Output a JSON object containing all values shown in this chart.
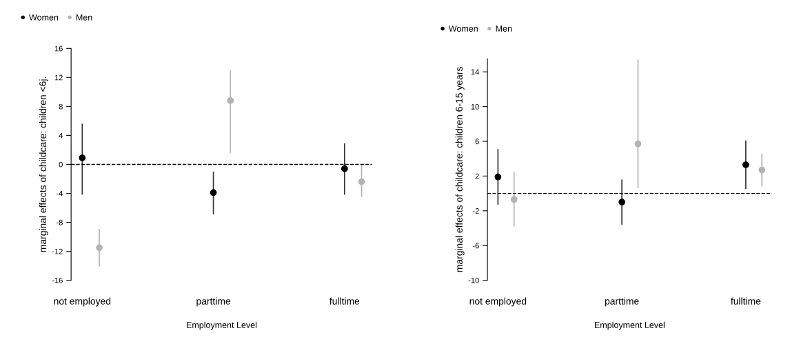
{
  "chart_data": [
    {
      "type": "scatter",
      "categories": [
        "not employed",
        "parttime",
        "fulltime"
      ],
      "xlabel": "Employment Level",
      "ylabel": "marginal effects of childcare: children <6j.",
      "ylim": [
        -16,
        16
      ],
      "yticks": [
        -16,
        -12,
        -8,
        -4,
        0,
        4,
        8,
        12,
        16
      ],
      "legend": "top left",
      "marker": "circle",
      "grid": false,
      "series": [
        {
          "name": "Women",
          "color": "#000000",
          "values": [
            0.9,
            -3.9,
            -0.6
          ],
          "errors": [
            [
              -4.2,
              5.6
            ],
            [
              -6.9,
              -1.0
            ],
            [
              -4.2,
              2.9
            ]
          ]
        },
        {
          "name": "Men",
          "color": "#b3b3b3",
          "values": [
            -11.5,
            8.8,
            -2.4
          ],
          "errors": [
            [
              -14.1,
              -8.9
            ],
            [
              1.6,
              13.0
            ],
            [
              -4.5,
              0.0
            ]
          ]
        }
      ],
      "ref_lines": [
        {
          "axis": "y",
          "value": 0,
          "line_style": "dashed",
          "color": "#000000"
        }
      ]
    },
    {
      "type": "scatter",
      "categories": [
        "not employed",
        "parttime",
        "fulltime"
      ],
      "xlabel": "Employment Level",
      "ylabel": "marginal effects of childcare: children 6-15 years",
      "ylim": [
        -10,
        15.5
      ],
      "yticks": [
        -10,
        -6,
        -2,
        2,
        6,
        10,
        14
      ],
      "legend": "top left",
      "marker": "circle",
      "grid": false,
      "series": [
        {
          "name": "Women",
          "color": "#000000",
          "values": [
            1.9,
            -1.0,
            3.3
          ],
          "errors": [
            [
              -1.3,
              5.1
            ],
            [
              -3.6,
              1.6
            ],
            [
              0.5,
              6.1
            ]
          ]
        },
        {
          "name": "Men",
          "color": "#b3b3b3",
          "values": [
            -0.7,
            5.7,
            2.7
          ],
          "errors": [
            [
              -3.8,
              2.5
            ],
            [
              0.6,
              15.4
            ],
            [
              0.8,
              4.6
            ]
          ]
        }
      ],
      "ref_lines": [
        {
          "axis": "y",
          "value": 0,
          "line_style": "dashed",
          "color": "#000000"
        }
      ]
    }
  ]
}
